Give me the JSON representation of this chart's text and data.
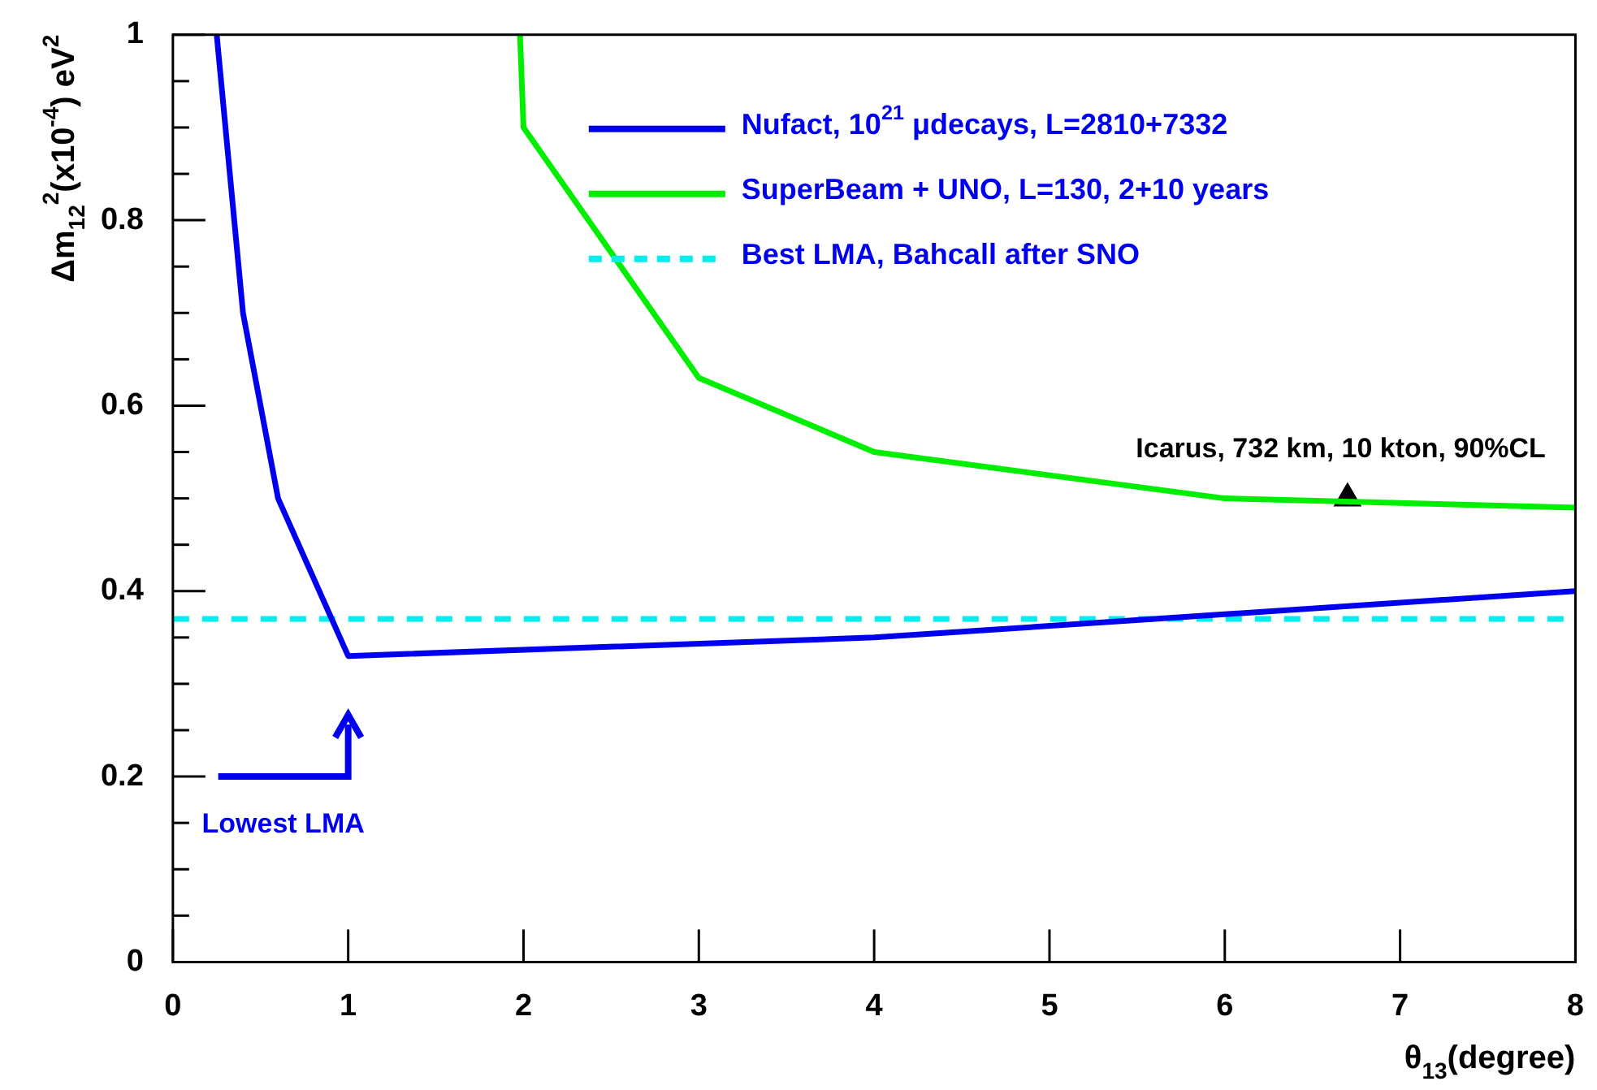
{
  "chart_data": {
    "type": "line",
    "xlabel": "θ$_{13}$(degree)",
    "ylabel": "Δm$_{12}$$^{2}$(x10$^{-4}$) eV$^{2}$",
    "xlim": [
      0,
      8
    ],
    "xticks": [
      0,
      1,
      2,
      3,
      4,
      5,
      6,
      7,
      8
    ],
    "ylim": [
      0,
      1
    ],
    "yticks": [
      0,
      {
        "value": 0.05,
        "label": null
      },
      0.2,
      {
        "value": 0.1,
        "label": null
      },
      {
        "value": 0.15,
        "label": null
      },
      {
        "value": 0.25,
        "label": null
      },
      {
        "value": 0.3,
        "label": null
      },
      {
        "value": 0.35,
        "label": null
      },
      0.4,
      {
        "value": 0.45,
        "label": null
      },
      {
        "value": 0.5,
        "label": null
      },
      {
        "value": 0.55,
        "label": null
      },
      0.6,
      {
        "value": 0.65,
        "label": null
      },
      {
        "value": 0.7,
        "label": null
      },
      {
        "value": 0.75,
        "label": null
      },
      0.8,
      {
        "value": 0.85,
        "label": null
      },
      {
        "value": 0.9,
        "label": null
      },
      {
        "value": 0.95,
        "label": null
      },
      1
    ],
    "grid": false,
    "legend": "top right",
    "marker": "none",
    "line_style": "solid",
    "series": [
      {
        "name": "Nufact, 10$^{21}$ μdecays, L=2810+7332",
        "color": "#0000ee",
        "x": [
          0.25,
          0.4,
          0.6,
          1,
          4,
          8
        ],
        "values": [
          1,
          0.7,
          0.5,
          0.33,
          0.35,
          0.4
        ]
      },
      {
        "name": "SuperBeam + UNO, L=130, 2+10 years",
        "color": "#00ee00",
        "x": [
          1.98,
          2,
          3,
          4,
          6,
          8
        ],
        "values": [
          1,
          0.9,
          0.63,
          0.55,
          0.5,
          0.49
        ]
      },
      {
        "name": "Icarus, 732 km, 10 kton, 90%CL",
        "type": "scatter",
        "marker": "triangle",
        "color": "#000000",
        "x": [
          6.7
        ],
        "values": [
          0.5
        ]
      }
    ],
    "ref_lines": [
      {
        "axis": "y",
        "value": 0.37,
        "label": "Best LMA, Bahcall after SNO",
        "color": "#00eeee",
        "line_style": "dashed"
      }
    ],
    "annotations": [
      "Lowest LMA"
    ]
  }
}
